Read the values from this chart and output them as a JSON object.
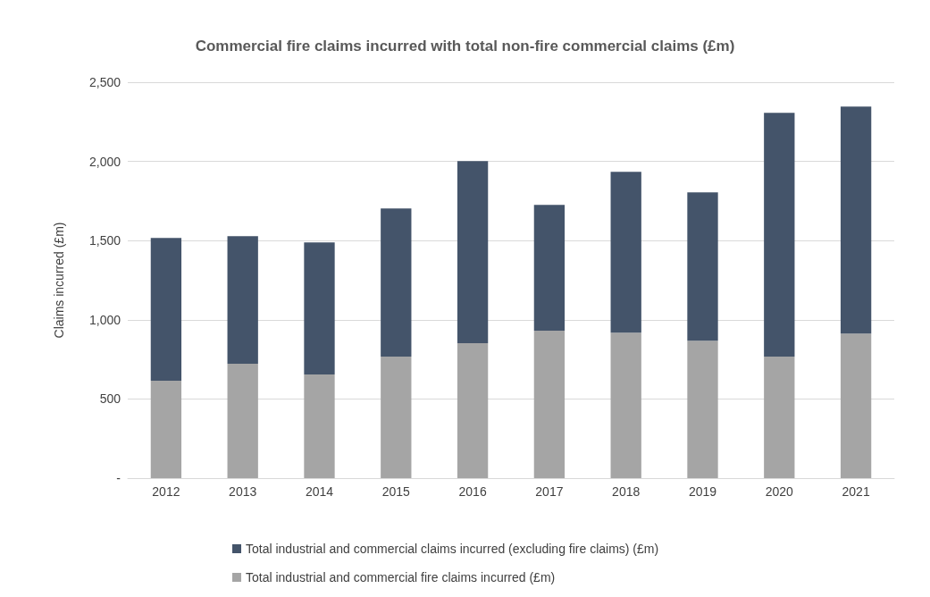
{
  "chart_data": {
    "type": "bar",
    "title": "Commercial fire claims incurred with total non-fire commercial claims (£m)",
    "ylabel": "Claims incurred (£m)",
    "categories": [
      "2012",
      "2013",
      "2014",
      "2015",
      "2016",
      "2017",
      "2018",
      "2019",
      "2020",
      "2021"
    ],
    "series": [
      {
        "name": "Total industrial and commercial fire claims incurred (£m)",
        "color": "#a5a5a5",
        "values": [
          615,
          722,
          654,
          767,
          852,
          931,
          919,
          868,
          767,
          913
        ]
      },
      {
        "name": "Total industrial and commercial claims incurred (excluding fire claims) (£m)",
        "color": "#44546a",
        "values": [
          902,
          806,
          835,
          936,
          1150,
          795,
          1015,
          937,
          1540,
          1433
        ]
      }
    ],
    "stacked": true,
    "ylim": [
      0,
      2500
    ],
    "yticks": [
      {
        "value": 0,
        "label": "-"
      },
      {
        "value": 500,
        "label": "500"
      },
      {
        "value": 1000,
        "label": "1,000"
      },
      {
        "value": 1500,
        "label": "1,500"
      },
      {
        "value": 2000,
        "label": "2,000"
      },
      {
        "value": 2500,
        "label": "2,500"
      }
    ],
    "grid": "y",
    "legend": "bottom"
  }
}
